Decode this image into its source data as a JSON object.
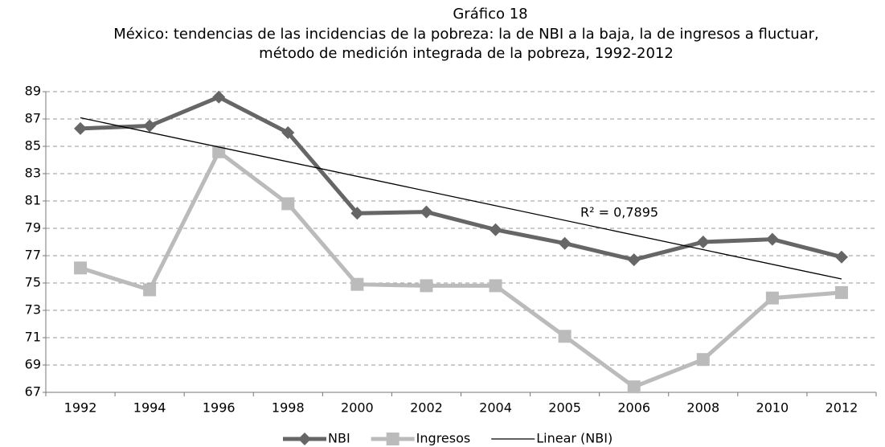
{
  "chart_data": {
    "type": "line",
    "title": "Gráfico 18",
    "subtitle": [
      "México: tendencias de las incidencias de la pobreza: la de NBI a la baja, la de ingresos a fluctuar,",
      "método de medición integrada de la pobreza, 1992-2012"
    ],
    "categories": [
      "1992",
      "1994",
      "1996",
      "1998",
      "2000",
      "2002",
      "2004",
      "2005",
      "2006",
      "2008",
      "2010",
      "2012"
    ],
    "series": [
      {
        "name": "NBI",
        "color": "#666666",
        "marker": "diamond",
        "values": [
          86.3,
          86.5,
          88.6,
          86.0,
          80.1,
          80.2,
          78.9,
          77.9,
          76.7,
          78.0,
          78.2,
          76.9
        ]
      },
      {
        "name": "Ingresos",
        "color": "#bbbbbb",
        "marker": "square",
        "values": [
          76.1,
          74.5,
          84.6,
          80.8,
          74.9,
          74.8,
          74.8,
          71.1,
          67.4,
          69.4,
          73.9,
          74.3
        ]
      }
    ],
    "trendline": {
      "name": "Linear (NBI)",
      "color": "#000000",
      "annotation": "R² = 0,7895"
    },
    "ylim": [
      67,
      89
    ],
    "yticks": [
      67,
      69,
      71,
      73,
      75,
      77,
      79,
      81,
      83,
      85,
      87,
      89
    ],
    "grid": true
  }
}
